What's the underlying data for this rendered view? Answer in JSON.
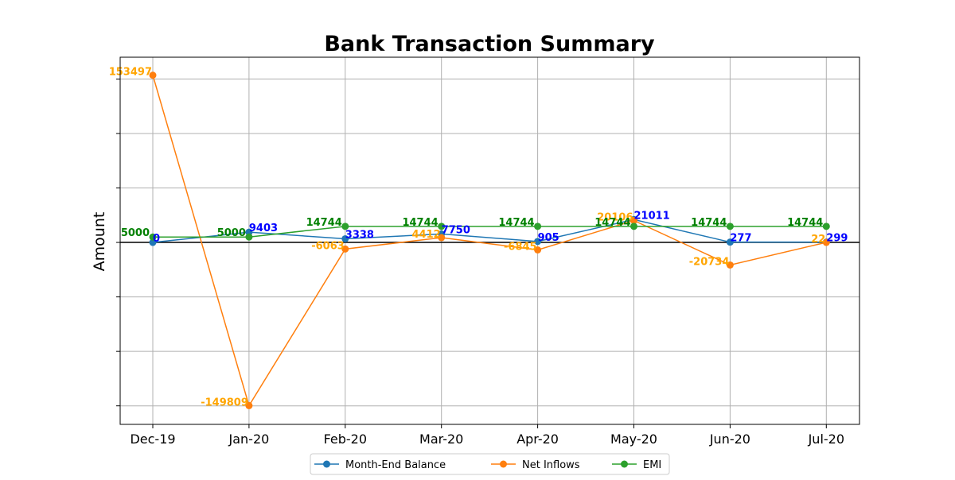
{
  "chart_data": {
    "type": "line",
    "title": "Bank Transaction Summary",
    "xlabel": "",
    "ylabel": "Amount",
    "categories": [
      "Dec-19",
      "Jan-20",
      "Feb-20",
      "Mar-20",
      "Apr-20",
      "May-20",
      "Jun-20",
      "Jul-20"
    ],
    "ylim": [
      -167000,
      170000
    ],
    "yticks": [
      -150000,
      -100000,
      -50000,
      0,
      50000,
      100000,
      150000
    ],
    "ytick_labels_visible": false,
    "grid": true,
    "zero_line": true,
    "legend_position": "bottom-center",
    "series": [
      {
        "name": "Month-End Balance",
        "color": "#1f77b4",
        "label_color": "#0000ff",
        "values": [
          0,
          9403,
          3338,
          7750,
          905,
          21011,
          277,
          299
        ]
      },
      {
        "name": "Net Inflows",
        "color": "#ff7f0e",
        "label_color": "#ffa500",
        "values": [
          153497,
          -149809,
          -6063,
          4412,
          -6845,
          20106,
          -20734,
          22
        ]
      },
      {
        "name": "EMI",
        "color": "#2ca02c",
        "label_color": "#008000",
        "values": [
          5000,
          5000,
          14744,
          14744,
          14744,
          14744,
          14744,
          14744
        ]
      }
    ]
  }
}
